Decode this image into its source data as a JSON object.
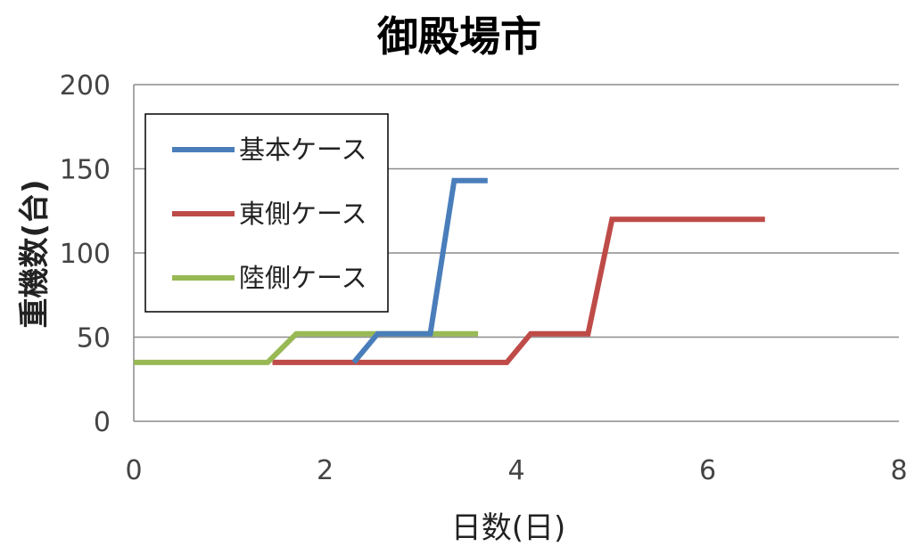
{
  "chart_data": {
    "type": "line",
    "title": "御殿場市",
    "xlabel": "日数(日)",
    "ylabel": "重機数(台)",
    "xlim": [
      0,
      8
    ],
    "ylim": [
      0,
      200
    ],
    "xticks": [
      0,
      2,
      4,
      6,
      8
    ],
    "yticks": [
      0,
      50,
      100,
      150,
      200
    ],
    "grid": "horizontal",
    "legend_position": "top-left",
    "series": [
      {
        "name": "基本ケース",
        "color": "#4a7ebb",
        "x": [
          2.3,
          2.55,
          3.1,
          3.35,
          3.7
        ],
        "y": [
          35,
          52,
          52,
          143,
          143
        ]
      },
      {
        "name": "東側ケース",
        "color": "#be4b48",
        "x": [
          1.45,
          3.9,
          4.15,
          4.75,
          5.0,
          6.6
        ],
        "y": [
          35,
          35,
          52,
          52,
          120,
          120
        ]
      },
      {
        "name": "陸側ケース",
        "color": "#98b954",
        "x": [
          0,
          1.4,
          1.7,
          3.6
        ],
        "y": [
          35,
          35,
          52,
          52
        ]
      }
    ]
  }
}
